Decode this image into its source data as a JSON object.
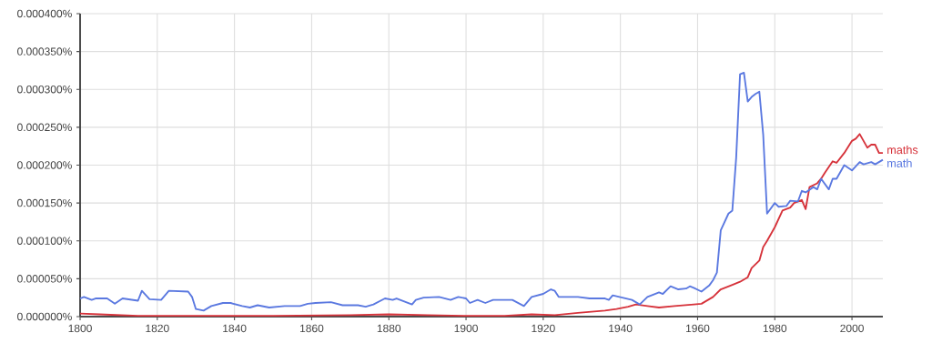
{
  "chart_data": {
    "type": "line",
    "xlim": [
      1800,
      2008
    ],
    "xticks": [
      1800,
      1820,
      1840,
      1860,
      1880,
      1900,
      1920,
      1940,
      1960,
      1980,
      2000
    ],
    "ylim": [
      0,
      0.0004
    ],
    "yticks": [
      {
        "value": 0,
        "label": "0.000000%"
      },
      {
        "value": 5e-05,
        "label": "0.000050%"
      },
      {
        "value": 0.0001,
        "label": "0.000100%"
      },
      {
        "value": 0.00015,
        "label": "0.000150%"
      },
      {
        "value": 0.0002,
        "label": "0.000200%"
      },
      {
        "value": 0.00025,
        "label": "0.000250%"
      },
      {
        "value": 0.0003,
        "label": "0.000300%"
      },
      {
        "value": 0.00035,
        "label": "0.000350%"
      },
      {
        "value": 0.0004,
        "label": "0.000400%"
      }
    ],
    "grid": true,
    "series": [
      {
        "name": "maths",
        "color": "#d6323a",
        "x": [
          1800,
          1805,
          1810,
          1815,
          1830,
          1850,
          1870,
          1880,
          1890,
          1900,
          1910,
          1917,
          1923,
          1929,
          1936,
          1939,
          1942,
          1944,
          1947,
          1950,
          1954,
          1959,
          1961,
          1964,
          1966,
          1969,
          1971,
          1973,
          1974,
          1976,
          1977,
          1978,
          1980,
          1982,
          1984,
          1985,
          1987,
          1988,
          1989,
          1991,
          1992,
          1993,
          1995,
          1996,
          1998,
          2000,
          2001,
          2002,
          2004,
          2005,
          2006,
          2007,
          2008
        ],
        "values": [
          4e-06,
          3e-06,
          2e-06,
          1e-06,
          1e-06,
          1e-06,
          2e-06,
          3e-06,
          2e-06,
          1e-06,
          1e-06,
          3e-06,
          2e-06,
          5e-06,
          8e-06,
          1e-05,
          1.3e-05,
          1.6e-05,
          1.4e-05,
          1.2e-05,
          1.4e-05,
          1.6e-05,
          1.7e-05,
          2.6e-05,
          3.6e-05,
          4.2e-05,
          4.6e-05,
          5.2e-05,
          6.4e-05,
          7.4e-05,
          9.2e-05,
          0.0001,
          0.000118,
          0.00014,
          0.000144,
          0.00015,
          0.000154,
          0.000142,
          0.000171,
          0.000176,
          0.000182,
          0.00019,
          0.000205,
          0.000203,
          0.000216,
          0.000232,
          0.000235,
          0.000241,
          0.000223,
          0.000227,
          0.000227,
          0.000216,
          0.000216
        ]
      },
      {
        "name": "math",
        "color": "#5a78e0",
        "x": [
          1800,
          1801,
          1803,
          1804,
          1807,
          1809,
          1811,
          1815,
          1816,
          1818,
          1821,
          1823,
          1828,
          1829,
          1830,
          1832,
          1834,
          1837,
          1839,
          1842,
          1844,
          1846,
          1849,
          1853,
          1857,
          1859,
          1861,
          1865,
          1868,
          1872,
          1874,
          1876,
          1879,
          1881,
          1882,
          1886,
          1887,
          1889,
          1893,
          1896,
          1898,
          1900,
          1901,
          1903,
          1905,
          1907,
          1912,
          1915,
          1917,
          1920,
          1922,
          1923,
          1924,
          1929,
          1932,
          1936,
          1937,
          1938,
          1943,
          1945,
          1947,
          1950,
          1951,
          1953,
          1955,
          1957,
          1958,
          1959,
          1961,
          1963,
          1964,
          1965,
          1966,
          1968,
          1969,
          1970,
          1971,
          1972,
          1973,
          1974,
          1975,
          1976,
          1977,
          1978,
          1980,
          1981,
          1983,
          1984,
          1986,
          1987,
          1988,
          1990,
          1991,
          1992,
          1994,
          1995,
          1996,
          1998,
          2000,
          2002,
          2003,
          2005,
          2006,
          2008
        ],
        "values": [
          2.4e-05,
          2.6e-05,
          2.2e-05,
          2.4e-05,
          2.4e-05,
          1.7e-05,
          2.4e-05,
          2.1e-05,
          3.4e-05,
          2.3e-05,
          2.2e-05,
          3.4e-05,
          3.3e-05,
          2.6e-05,
          1e-05,
          8e-06,
          1.4e-05,
          1.8e-05,
          1.8e-05,
          1.4e-05,
          1.2e-05,
          1.5e-05,
          1.2e-05,
          1.4e-05,
          1.4e-05,
          1.7e-05,
          1.8e-05,
          1.9e-05,
          1.5e-05,
          1.5e-05,
          1.3e-05,
          1.6e-05,
          2.4e-05,
          2.2e-05,
          2.4e-05,
          1.6e-05,
          2.2e-05,
          2.5e-05,
          2.6e-05,
          2.2e-05,
          2.6e-05,
          2.4e-05,
          1.8e-05,
          2.2e-05,
          1.8e-05,
          2.2e-05,
          2.2e-05,
          1.4e-05,
          2.6e-05,
          3e-05,
          3.6e-05,
          3.4e-05,
          2.6e-05,
          2.6e-05,
          2.4e-05,
          2.4e-05,
          2.2e-05,
          2.8e-05,
          2.2e-05,
          1.6e-05,
          2.6e-05,
          3.2e-05,
          3e-05,
          4e-05,
          3.6e-05,
          3.7e-05,
          4e-05,
          3.8e-05,
          3.3e-05,
          4.1e-05,
          4.8e-05,
          5.8e-05,
          0.000114,
          0.000136,
          0.00014,
          0.00021,
          0.00032,
          0.000322,
          0.000284,
          0.00029,
          0.000294,
          0.000297,
          0.00024,
          0.000136,
          0.00015,
          0.000145,
          0.000146,
          0.000153,
          0.000152,
          0.000166,
          0.000164,
          0.000171,
          0.000168,
          0.000182,
          0.000168,
          0.000182,
          0.000182,
          0.0002,
          0.000193,
          0.000204,
          0.000201,
          0.000204,
          0.000201,
          0.000207
        ]
      }
    ]
  }
}
